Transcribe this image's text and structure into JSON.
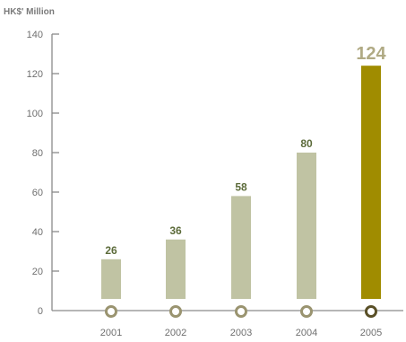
{
  "chart_data": {
    "type": "bar",
    "title": "",
    "ylabel": "HK$' Million",
    "xlabel": "",
    "categories": [
      "2001",
      "2002",
      "2003",
      "2004",
      "2005"
    ],
    "values": [
      26,
      36,
      58,
      80,
      124
    ],
    "value_labels": [
      "26",
      "36",
      "58",
      "80",
      "124"
    ],
    "y_ticks": [
      "0",
      "20",
      "40",
      "60",
      "80",
      "100",
      "120",
      "140"
    ],
    "ylim": [
      0,
      140
    ],
    "grid": false,
    "legend": "none",
    "highlight_index": 4,
    "colors": {
      "bar": "#c0c3a3",
      "bar_highlight": "#a08c00",
      "label": "#5c6b3a",
      "label_highlight": "#b0aa84",
      "axis": "#8a8a8a",
      "marker": "#9a9470",
      "marker_highlight": "#5a5028"
    }
  }
}
